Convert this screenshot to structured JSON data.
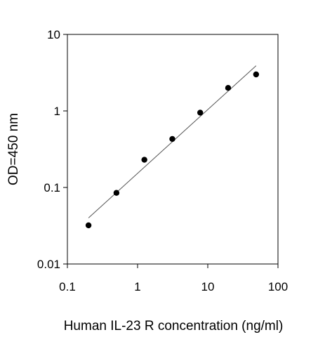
{
  "chart_data": {
    "type": "scatter",
    "title": "",
    "xlabel": "Human IL-23  R concentration (ng/ml)",
    "ylabel": "OD=450 nm",
    "x_scale": "log",
    "y_scale": "log",
    "xlim": [
      0.1,
      100
    ],
    "ylim": [
      0.01,
      10
    ],
    "x_ticks": [
      0.1,
      1,
      10,
      100
    ],
    "x_tick_labels": [
      "0.1",
      "1",
      "10",
      "100"
    ],
    "y_ticks": [
      0.01,
      0.1,
      1,
      10
    ],
    "y_tick_labels": [
      "0.01",
      "0.1",
      "1",
      "10"
    ],
    "grid": false,
    "legend": "none",
    "points": {
      "x": [
        0.2,
        0.5,
        1.25,
        3.125,
        7.8,
        19.5,
        48.8
      ],
      "y": [
        0.032,
        0.085,
        0.23,
        0.43,
        0.95,
        2.0,
        3.0
      ]
    },
    "fit_line": {
      "x": [
        0.2,
        48.8
      ],
      "y": [
        0.04,
        3.9
      ]
    },
    "colors": {
      "points": "#000000",
      "fit_line": "#555555",
      "axes": "#000000"
    }
  }
}
